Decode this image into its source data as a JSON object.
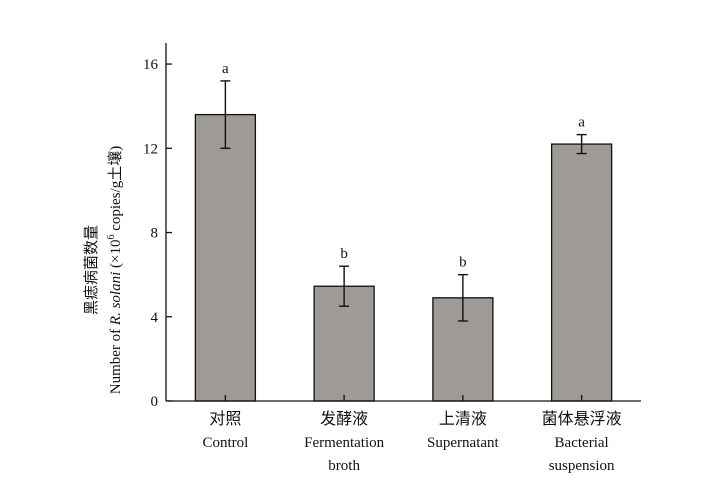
{
  "chart_data": {
    "type": "bar",
    "categories": [
      {
        "zh": "对照",
        "en": [
          "Control"
        ]
      },
      {
        "zh": "发酵液",
        "en": [
          "Fermentation",
          "broth"
        ]
      },
      {
        "zh": "上清液",
        "en": [
          "Supernatant"
        ]
      },
      {
        "zh": "菌体悬浮液",
        "en": [
          "Bacterial",
          "suspension"
        ]
      }
    ],
    "values": [
      13.6,
      5.45,
      4.9,
      12.2
    ],
    "errors": [
      1.6,
      0.95,
      1.1,
      0.45
    ],
    "significance": [
      "a",
      "b",
      "b",
      "a"
    ],
    "ylabel": {
      "zh": "黑痣病菌数量",
      "en_prefix": "Number of ",
      "en_italic": "R. solani",
      "en_paren_open": " (×10",
      "en_sup": "6",
      "en_suffix": " copies/g土壤)"
    },
    "ylim": [
      0,
      17
    ],
    "yticks": [
      0,
      4,
      8,
      12,
      16
    ],
    "bar_color": "#9e9a96",
    "bar_edge_color": "#111111",
    "grid": false
  }
}
